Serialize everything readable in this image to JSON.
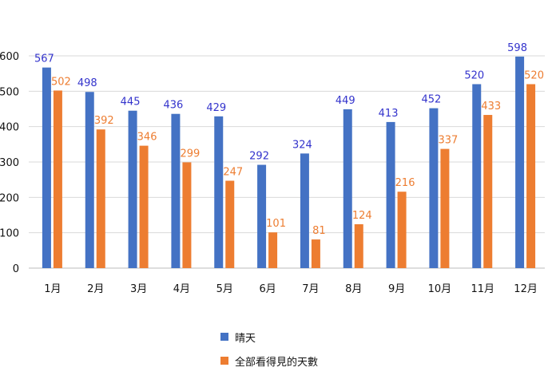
{
  "chart_data": {
    "type": "bar",
    "categories": [
      "1月",
      "2月",
      "3月",
      "4月",
      "5月",
      "6月",
      "7月",
      "8月",
      "9月",
      "10月",
      "11月",
      "12月"
    ],
    "series": [
      {
        "name": "晴天",
        "color": "#4472C4",
        "label_color": "#3333CC",
        "values": [
          567,
          498,
          445,
          436,
          429,
          292,
          324,
          449,
          413,
          452,
          520,
          598
        ]
      },
      {
        "name": "全部看得見的天數",
        "color": "#ED7D31",
        "label_color": "#ED7D31",
        "values": [
          502,
          392,
          346,
          299,
          247,
          101,
          81,
          124,
          216,
          337,
          433,
          520
        ]
      }
    ],
    "ylim": [
      0,
      600
    ],
    "yticks": [
      0,
      100,
      200,
      300,
      400,
      500,
      600
    ],
    "grid": true,
    "legend_position": "bottom"
  }
}
